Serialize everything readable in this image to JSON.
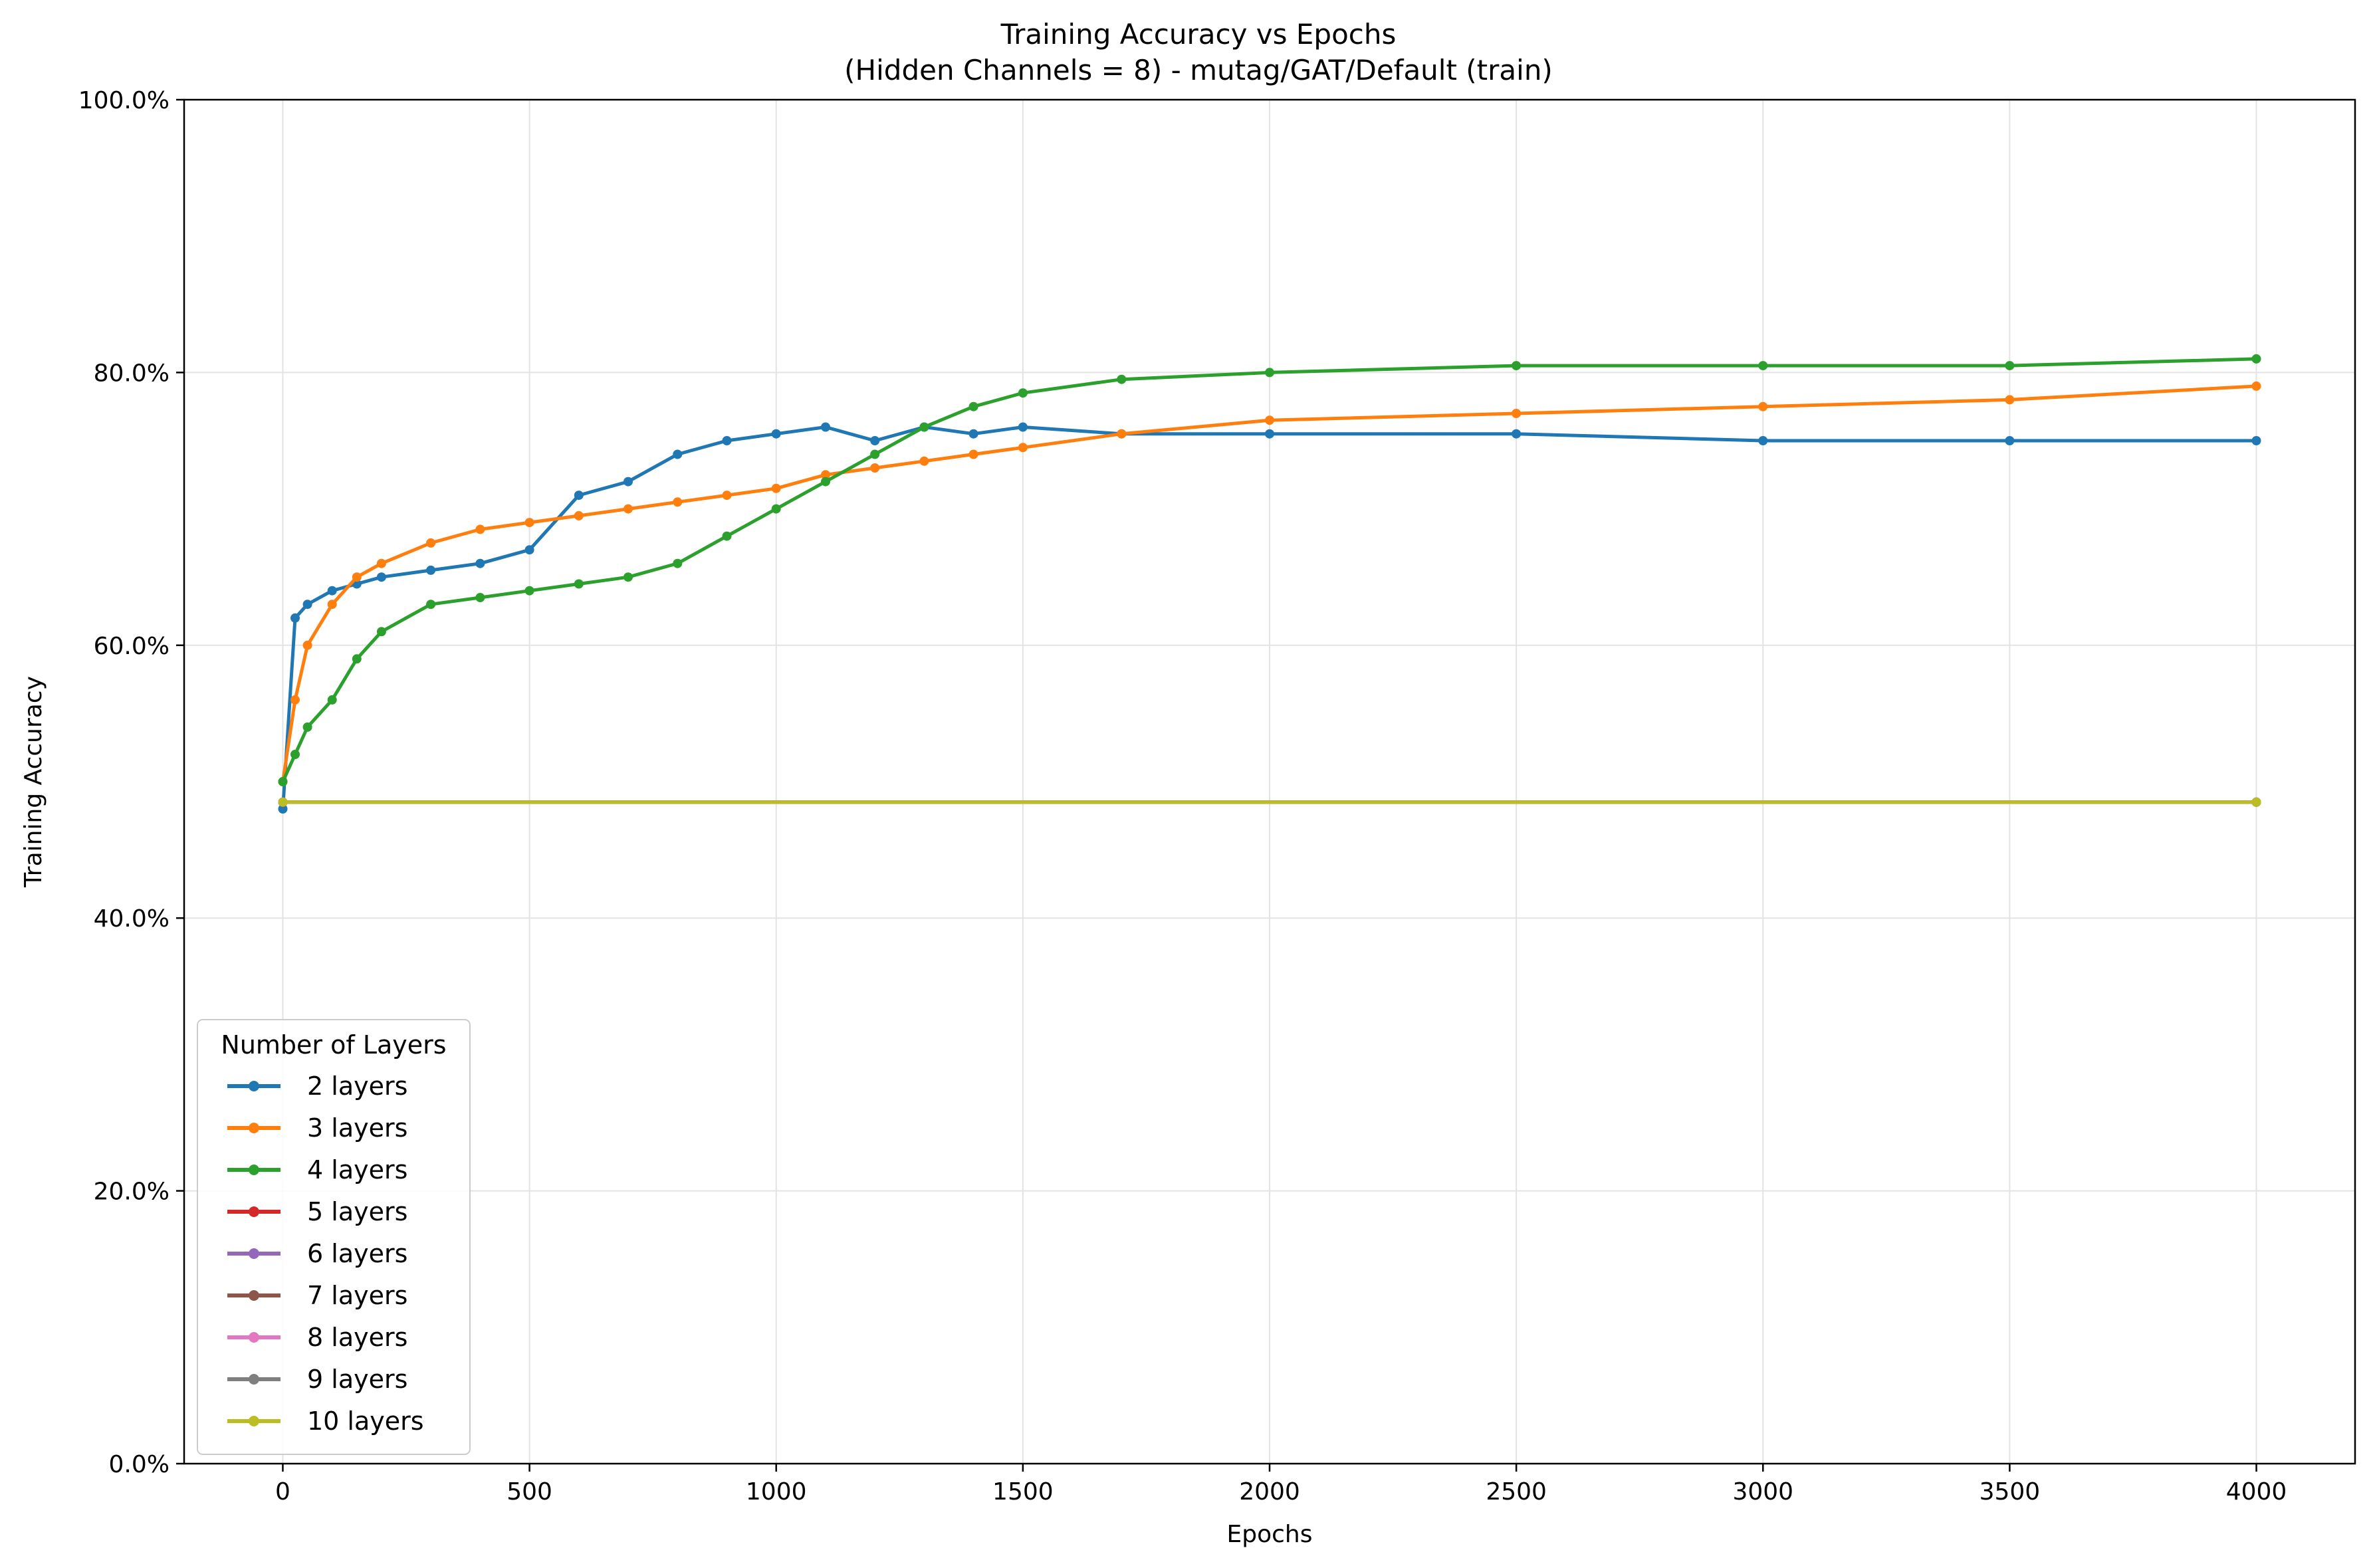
{
  "chart_data": {
    "type": "line",
    "title": "Training Accuracy vs Epochs",
    "subtitle": "(Hidden Channels = 8) - mutag/GAT/Default (train)",
    "xlabel": "Epochs",
    "ylabel": "Training Accuracy",
    "xlim": [
      -200,
      4200
    ],
    "ylim": [
      0,
      100
    ],
    "x_ticks": [
      0,
      500,
      1000,
      1500,
      2000,
      2500,
      3000,
      3500,
      4000
    ],
    "x_tick_labels": [
      "0",
      "500",
      "1000",
      "1500",
      "2000",
      "2500",
      "3000",
      "3500",
      "4000"
    ],
    "y_ticks": [
      0,
      20,
      40,
      60,
      80,
      100
    ],
    "y_tick_labels": [
      "0.0%",
      "20.0%",
      "40.0%",
      "60.0%",
      "80.0%",
      "100.0%"
    ],
    "grid": true,
    "legend": {
      "title": "Number of Layers",
      "placement": "lower-left"
    },
    "series": [
      {
        "name": "2 layers",
        "color": "#1f77b4",
        "x": [
          0,
          25,
          50,
          100,
          150,
          200,
          300,
          400,
          500,
          600,
          700,
          800,
          900,
          1000,
          1100,
          1200,
          1300,
          1400,
          1500,
          1700,
          2000,
          2500,
          3000,
          3500,
          4000
        ],
        "y": [
          48,
          62,
          63,
          64,
          64.5,
          65,
          65.5,
          66,
          67,
          71,
          72,
          74,
          75,
          75.5,
          76,
          75,
          76,
          75.5,
          76,
          75.5,
          75.5,
          75.5,
          75,
          75,
          75
        ]
      },
      {
        "name": "3 layers",
        "color": "#ff7f0e",
        "x": [
          0,
          25,
          50,
          100,
          150,
          200,
          300,
          400,
          500,
          600,
          700,
          800,
          900,
          1000,
          1100,
          1200,
          1300,
          1400,
          1500,
          1700,
          2000,
          2500,
          3000,
          3500,
          4000
        ],
        "y": [
          50,
          56,
          60,
          63,
          65,
          66,
          67.5,
          68.5,
          69,
          69.5,
          70,
          70.5,
          71,
          71.5,
          72.5,
          73,
          73.5,
          74,
          74.5,
          75.5,
          76.5,
          77,
          77.5,
          78,
          79
        ]
      },
      {
        "name": "4 layers",
        "color": "#2ca02c",
        "x": [
          0,
          25,
          50,
          100,
          150,
          200,
          300,
          400,
          500,
          600,
          700,
          800,
          900,
          1000,
          1100,
          1200,
          1300,
          1400,
          1500,
          1700,
          2000,
          2500,
          3000,
          3500,
          4000
        ],
        "y": [
          50,
          52,
          54,
          56,
          59,
          61,
          63,
          63.5,
          64,
          64.5,
          65,
          66,
          68,
          70,
          72,
          74,
          76,
          77.5,
          78.5,
          79.5,
          80,
          80.5,
          80.5,
          80.5,
          81
        ]
      },
      {
        "name": "5 layers",
        "color": "#d62728",
        "x": [
          0,
          4000
        ],
        "y": [
          48.5,
          48.5
        ]
      },
      {
        "name": "6 layers",
        "color": "#9467bd",
        "x": [
          0,
          4000
        ],
        "y": [
          48.5,
          48.5
        ]
      },
      {
        "name": "7 layers",
        "color": "#8c564b",
        "x": [
          0,
          4000
        ],
        "y": [
          48.5,
          48.5
        ]
      },
      {
        "name": "8 layers",
        "color": "#e377c2",
        "x": [
          0,
          4000
        ],
        "y": [
          48.5,
          48.5
        ]
      },
      {
        "name": "9 layers",
        "color": "#7f7f7f",
        "x": [
          0,
          4000
        ],
        "y": [
          48.5,
          48.5
        ]
      },
      {
        "name": "10 layers",
        "color": "#bcbd22",
        "x": [
          0,
          4000
        ],
        "y": [
          48.5,
          48.5
        ]
      }
    ]
  }
}
